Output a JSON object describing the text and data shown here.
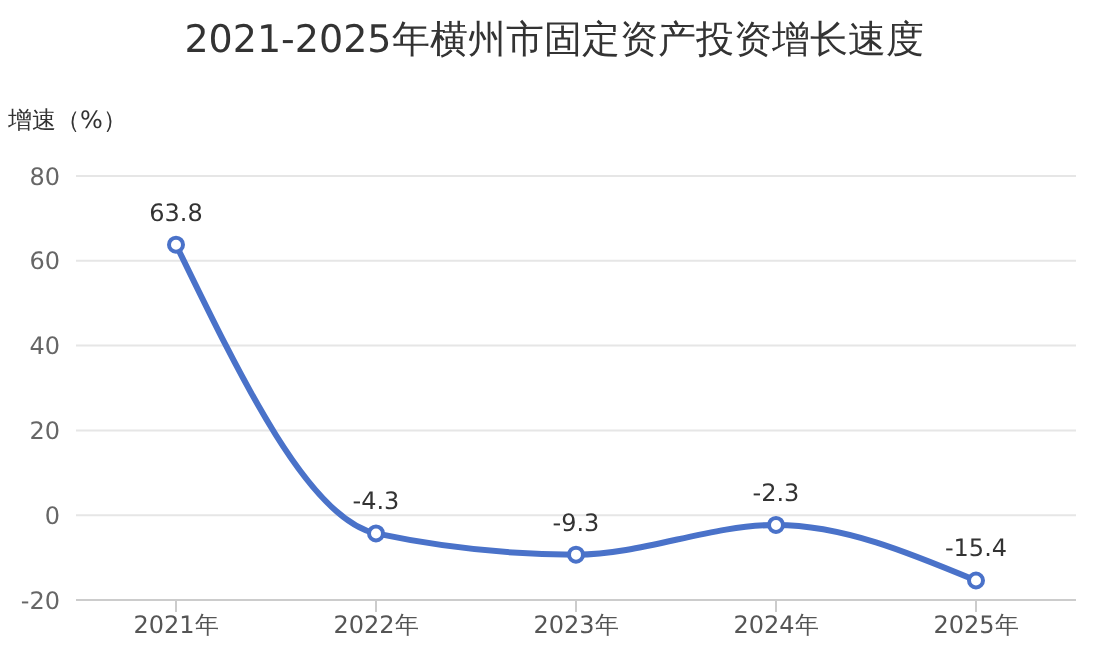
{
  "chart_data": {
    "type": "line",
    "title": "2021-2025年横州市固定资产投资增长速度",
    "ylabel": "增速（%）",
    "categories": [
      "2021年",
      "2022年",
      "2023年",
      "2024年",
      "2025年"
    ],
    "series": [
      {
        "color": "#4a72c9",
        "values": [
          63.8,
          -4.3,
          -9.3,
          -2.3,
          -15.4
        ]
      }
    ],
    "ylim": [
      -20,
      80
    ],
    "yticks": [
      -20,
      0,
      20,
      40,
      60,
      80
    ],
    "grid": "y",
    "marker": "circle",
    "data_labels": true,
    "legend": false
  }
}
